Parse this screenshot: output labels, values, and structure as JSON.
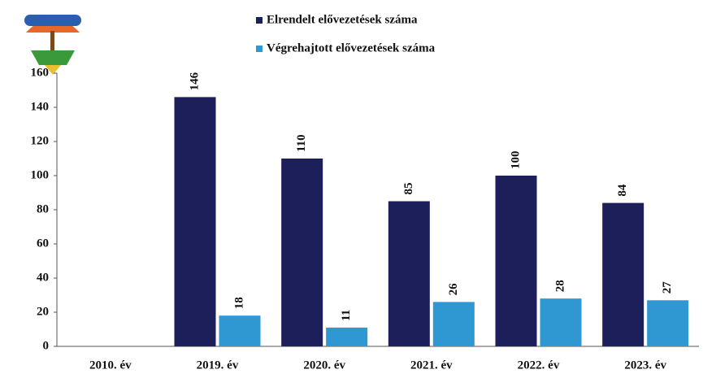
{
  "chart_data": {
    "type": "bar",
    "categories": [
      "2010. év",
      "2019. év",
      "2020. év",
      "2021. év",
      "2022. év",
      "2023. év"
    ],
    "series": [
      {
        "name": "Elrendelt elővezetések száma",
        "color": "#1c1f5a",
        "values": [
          null,
          146,
          110,
          85,
          100,
          84
        ]
      },
      {
        "name": "Végrehajtott elővezetések száma",
        "color": "#2f98d2",
        "values": [
          null,
          18,
          11,
          26,
          28,
          27
        ]
      }
    ],
    "ylim": [
      0,
      160
    ],
    "yticks": [
      0,
      20,
      40,
      60,
      80,
      100,
      120,
      140,
      160
    ],
    "grid": false,
    "data_labels": true
  }
}
